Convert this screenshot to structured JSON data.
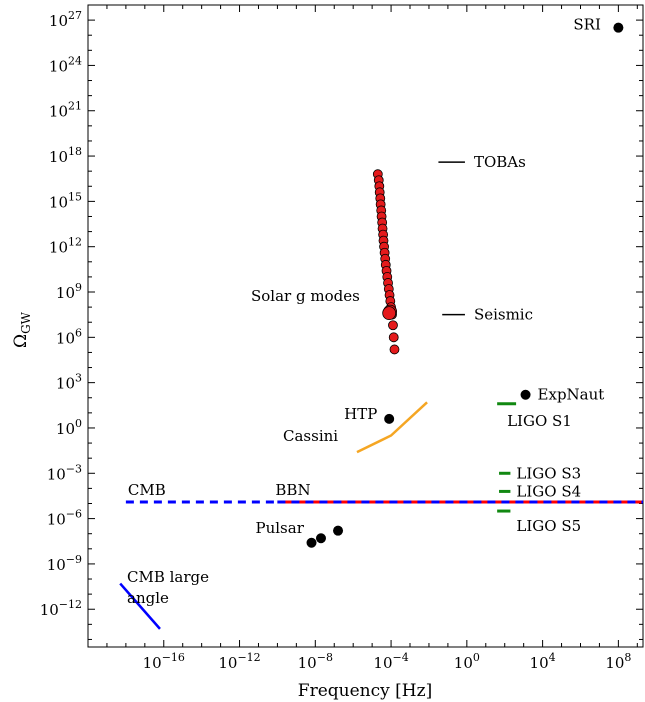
{
  "chart_data": {
    "type": "scatter",
    "xlabel": "Frequency [Hz]",
    "ylabel": "Ω",
    "ylabel_sub": "GW",
    "xscale": "log",
    "yscale": "log",
    "xlim_exp": [
      -20,
      9.3
    ],
    "ylim_exp": [
      -14.5,
      28
    ],
    "x_ticks": [
      {
        "base": "10",
        "exp": "−16",
        "e": -16
      },
      {
        "base": "10",
        "exp": "−12",
        "e": -12
      },
      {
        "base": "10",
        "exp": "−8",
        "e": -8
      },
      {
        "base": "10",
        "exp": "−4",
        "e": -4
      },
      {
        "base": "10",
        "exp": "0",
        "e": 0
      },
      {
        "base": "10",
        "exp": "4",
        "e": 4
      },
      {
        "base": "10",
        "exp": "8",
        "e": 8
      }
    ],
    "y_ticks": [
      {
        "base": "10",
        "exp": "−12",
        "e": -12
      },
      {
        "base": "10",
        "exp": "−9",
        "e": -9
      },
      {
        "base": "10",
        "exp": "−6",
        "e": -6
      },
      {
        "base": "10",
        "exp": "−3",
        "e": -3
      },
      {
        "base": "10",
        "exp": "0",
        "e": 0
      },
      {
        "base": "10",
        "exp": "3",
        "e": 3
      },
      {
        "base": "10",
        "exp": "6",
        "e": 6
      },
      {
        "base": "10",
        "exp": "9",
        "e": 9
      },
      {
        "base": "10",
        "exp": "12",
        "e": 12
      },
      {
        "base": "10",
        "exp": "15",
        "e": 15
      },
      {
        "base": "10",
        "exp": "18",
        "e": 18
      },
      {
        "base": "10",
        "exp": "21",
        "e": 21
      },
      {
        "base": "10",
        "exp": "24",
        "e": 24
      },
      {
        "base": "10",
        "exp": "27",
        "e": 27
      }
    ],
    "points": [
      {
        "label": "SRI",
        "x_exp": 8.0,
        "y_exp": 26.5
      },
      {
        "label": "ExpNaut",
        "x_exp": 3.1,
        "y_exp": 2.2
      },
      {
        "label": "HTP",
        "x_exp": -4.1,
        "y_exp": 0.6
      },
      {
        "label": "Pulsar",
        "x_exp": -8.2,
        "y_exp": -7.6
      },
      {
        "label": "",
        "x_exp": -7.7,
        "y_exp": -7.3
      },
      {
        "label": "",
        "x_exp": -6.8,
        "y_exp": -6.8
      }
    ],
    "solar_g_modes": {
      "label": "Solar g modes",
      "points": [
        [
          -4.7,
          16.8
        ],
        [
          -4.65,
          16.4
        ],
        [
          -4.62,
          16.0
        ],
        [
          -4.6,
          15.6
        ],
        [
          -4.57,
          15.2
        ],
        [
          -4.55,
          14.8
        ],
        [
          -4.52,
          14.4
        ],
        [
          -4.5,
          14.0
        ],
        [
          -4.47,
          13.6
        ],
        [
          -4.45,
          13.2
        ],
        [
          -4.42,
          12.8
        ],
        [
          -4.4,
          12.4
        ],
        [
          -4.37,
          12.0
        ],
        [
          -4.34,
          11.6
        ],
        [
          -4.31,
          11.2
        ],
        [
          -4.28,
          10.8
        ],
        [
          -4.24,
          10.4
        ],
        [
          -4.2,
          10.0
        ],
        [
          -4.16,
          9.6
        ],
        [
          -4.12,
          9.2
        ],
        [
          -4.08,
          8.8
        ],
        [
          -4.04,
          8.4
        ],
        [
          -4.0,
          8.0
        ],
        [
          -3.95,
          7.5
        ],
        [
          -3.9,
          6.8
        ],
        [
          -3.86,
          6.0
        ],
        [
          -3.82,
          5.2
        ]
      ],
      "big_points": [
        [
          -4.05,
          7.7
        ],
        [
          -4.1,
          7.6
        ]
      ]
    },
    "tobas": {
      "label": "TOBAs",
      "x_exp": [
        -1.5,
        -0.1
      ],
      "y_exp": 17.6
    },
    "seismic": {
      "label": "Seismic",
      "x_exp": [
        -1.3,
        -0.1
      ],
      "y_exp": 7.5
    },
    "cassini": {
      "label": "Cassini",
      "x_exp": [
        -5.8,
        -4.0,
        -2.1
      ],
      "y_exp": [
        -1.6,
        -0.5,
        1.7
      ]
    },
    "cmb_large_angle": {
      "label_line1": "CMB large",
      "label_line2": "angle",
      "x_exp": [
        -18.3,
        -16.2
      ],
      "y_exp": [
        -10.3,
        -13.3
      ]
    },
    "cmb_line": {
      "label": "CMB",
      "x_start_exp": -18.0,
      "y_exp": -4.9,
      "color": "#0000ff"
    },
    "bbn_line": {
      "label": "BBN",
      "x_start_exp": -10.0,
      "y_exp": -4.9,
      "color": "#ff0000"
    },
    "ligo": [
      {
        "label": "LIGO S1",
        "x_exp": [
          1.6,
          2.6
        ],
        "y_exp": 1.6
      },
      {
        "label": "LIGO S3",
        "x_exp": [
          1.7,
          2.3
        ],
        "y_exp": -3.0
      },
      {
        "label": "LIGO S4",
        "x_exp": [
          1.7,
          2.3
        ],
        "y_exp": -4.2
      },
      {
        "label": "LIGO S5",
        "x_exp": [
          1.6,
          2.3
        ],
        "y_exp": -5.5
      }
    ],
    "colors": {
      "dot": "#000000",
      "solar": "#e41a1c",
      "cassini": "#f5a623",
      "ligo": "#118811",
      "cmb_large": "#0000ff"
    }
  }
}
